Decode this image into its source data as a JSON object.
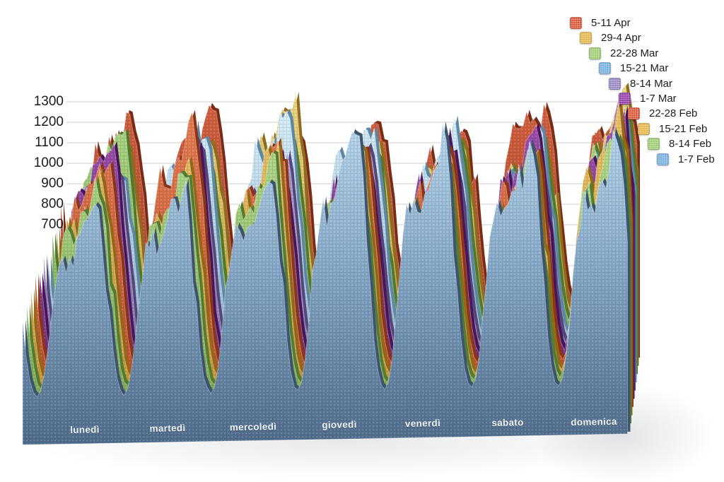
{
  "chart_data": {
    "type": "area",
    "style": "3d-depth-perspective-textured",
    "title": "",
    "x_categories": [
      "lunedì",
      "martedì",
      "mercoledì",
      "giovedì",
      "venerdì",
      "sabato",
      "domenica"
    ],
    "y_axis": {
      "min": 0,
      "max": 1300,
      "step": 100,
      "tick_labels_visible": [
        "1300",
        "1200",
        "1100",
        "1000",
        "900",
        "800",
        "700"
      ],
      "gridlines": true,
      "gridline_color": "#cccccc"
    },
    "night_min_value": 180,
    "series_order": "back-to-front",
    "series": [
      {
        "name": "5-11 Apr",
        "color": "#d95535",
        "fill_top": "#d4603f",
        "fill_bottom": "#9c3a20",
        "side": "#7c2a14",
        "day_peaks": [
          1250,
          1290,
          1200,
          1170,
          1150,
          1290,
          1260
        ]
      },
      {
        "name": "29-4 Apr",
        "color": "#e5b54a",
        "fill_top": "#eed983",
        "fill_bottom": "#bd9330",
        "side": "#8f6b1c",
        "day_peaks": [
          1100,
          1110,
          1300,
          1150,
          1130,
          1100,
          1290
        ]
      },
      {
        "name": "22-28 Mar",
        "color": "#9ccb70",
        "fill_top": "#aed685",
        "fill_bottom": "#6fa447",
        "side": "#4f7a2e",
        "day_peaks": [
          1230,
          1120,
          1150,
          1120,
          1100,
          1120,
          1250
        ]
      },
      {
        "name": "15-21 Mar",
        "color": "#74aede",
        "fill_top": "#d6eef8",
        "fill_bottom": "#84aac5",
        "side": "#5e87a6",
        "day_peaks": [
          1050,
          1230,
          1280,
          1260,
          1220,
          1150,
          1230
        ]
      },
      {
        "name": "8-14 Mar",
        "color": "#9583c1",
        "fill_top": "#b5a5d8",
        "fill_bottom": "#76639f",
        "side": "#55457c",
        "day_peaks": [
          1120,
          1160,
          1150,
          1100,
          1120,
          1140,
          1200
        ]
      },
      {
        "name": "1-7 Mar",
        "color": "#9139a8",
        "fill_top": "#a050b0",
        "fill_bottom": "#67256f",
        "side": "#4a1458",
        "day_peaks": [
          1190,
          1150,
          1100,
          1150,
          1180,
          1200,
          1280
        ]
      },
      {
        "name": "22-28 Feb",
        "color": "#d95535",
        "fill_top": "#e87c52",
        "fill_bottom": "#b34a24",
        "side": "#8c3416",
        "day_peaks": [
          1150,
          1290,
          1210,
          1180,
          1170,
          1160,
          1260
        ]
      },
      {
        "name": "15-21 Feb",
        "color": "#e5b54a",
        "fill_top": "#eec568",
        "fill_bottom": "#c08e2f",
        "side": "#926818",
        "day_peaks": [
          1080,
          1110,
          1200,
          1150,
          1120,
          1110,
          1290
        ]
      },
      {
        "name": "8-14 Feb",
        "color": "#9ccb70",
        "fill_top": "#b2d989",
        "fill_bottom": "#76a54c",
        "side": "#537c30",
        "day_peaks": [
          1060,
          1120,
          1160,
          1180,
          1150,
          1140,
          1250
        ]
      },
      {
        "name": "1-7 Feb",
        "color": "#74aede",
        "fill_top": "#b7d6ec",
        "fill_mid": "#86a9c8",
        "fill_bottom": "#4f6c8b",
        "side": "#3c546e",
        "day_peaks": [
          980,
          1060,
          1100,
          1250,
          1230,
          1230,
          1210
        ]
      }
    ],
    "legend": {
      "position": "top-right",
      "layout": "diagonal-staircase",
      "entries": [
        {
          "label": "5-11 Apr",
          "swatch_color": "#d95535"
        },
        {
          "label": "29-4 Apr",
          "swatch_color": "#e5b54a"
        },
        {
          "label": "22-28 Mar",
          "swatch_color": "#9ccb70"
        },
        {
          "label": "15-21 Mar",
          "swatch_color": "#74aede"
        },
        {
          "label": "8-14 Mar",
          "swatch_color": "#9583c1"
        },
        {
          "label": "1-7 Mar",
          "swatch_color": "#9139a8"
        },
        {
          "label": "22-28 Feb",
          "swatch_color": "#d95535"
        },
        {
          "label": "15-21 Feb",
          "swatch_color": "#e5b54a"
        },
        {
          "label": "8-14 Feb",
          "swatch_color": "#9ccb70"
        },
        {
          "label": "1-7 Feb",
          "swatch_color": "#74aede"
        }
      ]
    }
  }
}
